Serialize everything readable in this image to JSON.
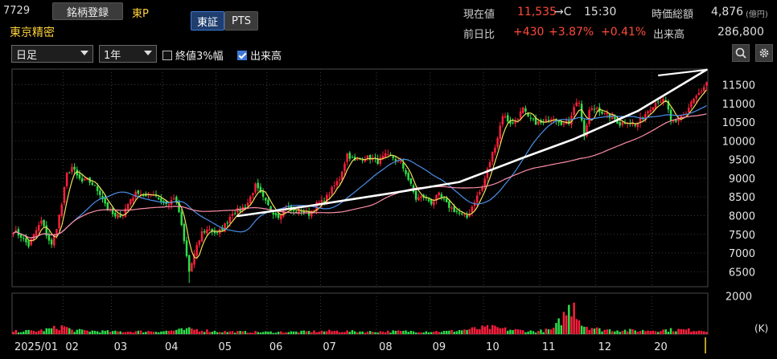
{
  "header": {
    "code": "7729",
    "register_label": "銘柄登録",
    "market": "東P",
    "name": "東京精密",
    "tabs": [
      "東証",
      "PTS"
    ],
    "active_tab": 0
  },
  "quote": {
    "price_label": "現在値",
    "price": "11,535",
    "price_suffix": "→C",
    "time": "15:30",
    "change_label": "前日比",
    "change": "+430",
    "change_pct": "+3.87%",
    "change_pct2": "+0.41%",
    "mcap_label": "時価総額",
    "mcap": "4,876",
    "mcap_unit": "(億円)",
    "volume_label": "出来高",
    "volume": "286,800"
  },
  "toolbar": {
    "period": "日足",
    "range": "1年",
    "opt1_label": "終値3%幅",
    "opt1_checked": false,
    "opt2_label": "出来高",
    "opt2_checked": true,
    "search_icon": "magnifier-icon",
    "settings_icon": "gear-icon"
  },
  "chart_data": {
    "type": "candlestick",
    "price_axis": {
      "ticks": [
        "11500",
        "11000",
        "10500",
        "10000",
        "9500",
        "9000",
        "8500",
        "8000",
        "7500",
        "7000",
        "6500"
      ],
      "ylim": [
        6100,
        11920
      ]
    },
    "volume_axis": {
      "ticks": [
        "2000"
      ],
      "unit": "(K)",
      "ylim": [
        0,
        2150
      ]
    },
    "x_labels": [
      "2025/01",
      "02",
      "03",
      "04",
      "05",
      "06",
      "07",
      "08",
      "09",
      "10",
      "11",
      "12",
      "20"
    ],
    "moving_average_colors": [
      "#f0e05a",
      "#4a8fe8",
      "#ff8fa8"
    ],
    "trendline_color": "#ffffff",
    "up_color": "#ff1e3c",
    "down_color": "#2ee04a",
    "close_path": [
      [
        0,
        7600
      ],
      [
        3,
        7450
      ],
      [
        6,
        7200
      ],
      [
        9,
        7600
      ],
      [
        11,
        7850
      ],
      [
        13,
        7500
      ],
      [
        15,
        7200
      ],
      [
        17,
        7700
      ],
      [
        19,
        8300
      ],
      [
        21,
        9100
      ],
      [
        23,
        9300
      ],
      [
        25,
        9050
      ],
      [
        27,
        8900
      ],
      [
        29,
        8950
      ],
      [
        31,
        8850
      ],
      [
        34,
        8600
      ],
      [
        37,
        8200
      ],
      [
        40,
        7950
      ],
      [
        43,
        8050
      ],
      [
        46,
        8450
      ],
      [
        49,
        8650
      ],
      [
        52,
        8500
      ],
      [
        55,
        8600
      ],
      [
        58,
        8400
      ],
      [
        61,
        8300
      ],
      [
        63,
        8500
      ],
      [
        65,
        8100
      ],
      [
        67,
        7300
      ],
      [
        69,
        6500
      ],
      [
        71,
        6950
      ],
      [
        74,
        7550
      ],
      [
        77,
        7650
      ],
      [
        80,
        7500
      ],
      [
        83,
        7750
      ],
      [
        86,
        8100
      ],
      [
        89,
        8150
      ],
      [
        92,
        8350
      ],
      [
        95,
        8800
      ],
      [
        98,
        8450
      ],
      [
        101,
        8150
      ],
      [
        104,
        8000
      ],
      [
        107,
        8250
      ],
      [
        110,
        8100
      ],
      [
        113,
        8150
      ],
      [
        116,
        8050
      ],
      [
        119,
        8300
      ],
      [
        122,
        8400
      ],
      [
        125,
        8700
      ],
      [
        128,
        9000
      ],
      [
        131,
        9650
      ],
      [
        134,
        9450
      ],
      [
        137,
        9550
      ],
      [
        140,
        9550
      ],
      [
        143,
        9450
      ],
      [
        146,
        9600
      ],
      [
        149,
        9550
      ],
      [
        152,
        9400
      ],
      [
        154,
        9150
      ],
      [
        156,
        8800
      ],
      [
        158,
        8450
      ],
      [
        161,
        8500
      ],
      [
        164,
        8350
      ],
      [
        167,
        8550
      ],
      [
        170,
        8300
      ],
      [
        173,
        8150
      ],
      [
        176,
        8000
      ],
      [
        178,
        7950
      ],
      [
        181,
        8400
      ],
      [
        184,
        8750
      ],
      [
        187,
        9450
      ],
      [
        190,
        10100
      ],
      [
        192,
        10700
      ],
      [
        194,
        10550
      ],
      [
        196,
        10450
      ],
      [
        198,
        10650
      ],
      [
        200,
        10850
      ],
      [
        202,
        10600
      ],
      [
        205,
        10500
      ],
      [
        208,
        10450
      ],
      [
        210,
        10600
      ],
      [
        212,
        10650
      ],
      [
        214,
        10550
      ],
      [
        216,
        10450
      ],
      [
        218,
        10500
      ],
      [
        220,
        10950
      ],
      [
        222,
        11050
      ],
      [
        224,
        10050
      ],
      [
        226,
        10800
      ],
      [
        229,
        10900
      ],
      [
        232,
        10700
      ],
      [
        235,
        10650
      ],
      [
        238,
        10450
      ],
      [
        241,
        10550
      ],
      [
        244,
        10400
      ],
      [
        247,
        10650
      ],
      [
        250,
        10900
      ],
      [
        253,
        11100
      ],
      [
        256,
        11050
      ],
      [
        258,
        10550
      ],
      [
        260,
        10450
      ],
      [
        262,
        10650
      ],
      [
        264,
        10750
      ],
      [
        266,
        11050
      ],
      [
        268,
        11200
      ],
      [
        270,
        11300
      ],
      [
        272,
        11535
      ]
    ],
    "volume_path": [
      [
        0,
        150
      ],
      [
        10,
        170
      ],
      [
        20,
        400
      ],
      [
        23,
        200
      ],
      [
        40,
        130
      ],
      [
        60,
        160
      ],
      [
        70,
        260
      ],
      [
        80,
        140
      ],
      [
        90,
        120
      ],
      [
        100,
        110
      ],
      [
        110,
        120
      ],
      [
        125,
        160
      ],
      [
        140,
        130
      ],
      [
        155,
        150
      ],
      [
        170,
        140
      ],
      [
        187,
        350
      ],
      [
        195,
        230
      ],
      [
        205,
        140
      ],
      [
        212,
        250
      ],
      [
        220,
        1650
      ],
      [
        223,
        500
      ],
      [
        230,
        240
      ],
      [
        245,
        180
      ],
      [
        260,
        230
      ],
      [
        272,
        200
      ]
    ]
  }
}
